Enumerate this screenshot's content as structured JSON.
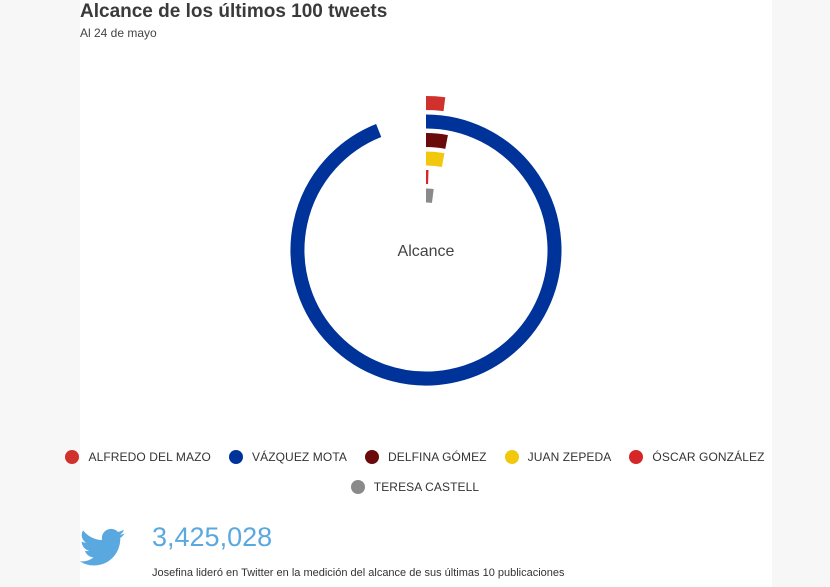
{
  "header": {
    "title": "Alcance de los últimos 100 tweets",
    "subtitle": "Al 24 de mayo"
  },
  "chart_data": {
    "type": "radial-bar",
    "center_label": "Alcance",
    "series": [
      {
        "name": "ALFREDO DEL MAZO",
        "fraction": 0.02,
        "color": "#d0312d"
      },
      {
        "name": "VÁZQUEZ MOTA",
        "fraction": 0.94,
        "color": "#003399"
      },
      {
        "name": "DELFINA GÓMEZ",
        "fraction": 0.03,
        "color": "#6a0a0a"
      },
      {
        "name": "JUAN ZEPEDA",
        "fraction": 0.03,
        "color": "#f2c80f"
      },
      {
        "name": "ÓSCAR GONZÁLEZ",
        "fraction": 0.005,
        "color": "#d62728"
      },
      {
        "name": "TERESA CASTELL",
        "fraction": 0.02,
        "color": "#8a8a8a"
      }
    ]
  },
  "stats": {
    "value": "3,425,028",
    "description": "Josefina lideró en Twitter en la medición del alcance de sus últimas 10 publicaciones"
  },
  "icons": {
    "twitter": "twitter-bird-icon"
  }
}
